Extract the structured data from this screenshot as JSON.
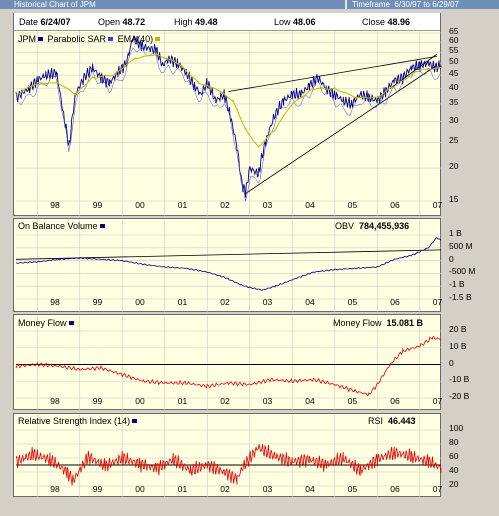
{
  "window": {
    "title": "Historical Chart of JPM",
    "timeframe_label": "Timeframe",
    "timeframe_value": "6/30/97 to 6/29/07"
  },
  "info": {
    "date_label": "Date",
    "date": "6/24/07",
    "open_label": "Open",
    "open": "48.72",
    "high_label": "High",
    "high": "49.48",
    "low_label": "Low",
    "low": "48.06",
    "close_label": "Close",
    "close": "48.96"
  },
  "colors": {
    "panel_bg": "#ffffe1",
    "price": "#00008b",
    "sar": "#3344dd",
    "ema": "#c8b400",
    "obv": "#00007a",
    "money_flow": "#e00000",
    "rsi": "#e00000",
    "grid": "#c8c8c8"
  },
  "chart_data": [
    {
      "type": "line",
      "legend": [
        "JPM",
        "Parabolic SAR",
        "EMA(40)"
      ],
      "legend_placement": "top-left",
      "y_scale": "log",
      "ylim": [
        15,
        65
      ],
      "y_ticks": [
        "65",
        "60",
        "55",
        "50",
        "45",
        "40",
        "35",
        "30",
        "25",
        "20",
        "15"
      ],
      "x_ticks": [
        "98",
        "99",
        "00",
        "01",
        "02",
        "03",
        "04",
        "05",
        "06",
        "07"
      ],
      "grid": true,
      "series": [
        {
          "name": "JPM",
          "x": [
            1997.5,
            1997.8,
            1998.0,
            1998.2,
            1998.45,
            1998.6,
            1998.75,
            1998.9,
            1999.1,
            1999.3,
            1999.5,
            1999.7,
            1999.9,
            2000.1,
            2000.25,
            2000.45,
            2000.6,
            2000.8,
            2000.95,
            2001.1,
            2001.3,
            2001.5,
            2001.7,
            2001.85,
            2002.0,
            2002.2,
            2002.4,
            2002.55,
            2002.7,
            2002.8,
            2002.9,
            2003.0,
            2003.2,
            2003.4,
            2003.6,
            2003.8,
            2004.0,
            2004.2,
            2004.4,
            2004.6,
            2004.8,
            2005.0,
            2005.2,
            2005.4,
            2005.6,
            2005.8,
            2006.0,
            2006.2,
            2006.4,
            2006.6,
            2006.8,
            2007.0,
            2007.2,
            2007.35,
            2007.5
          ],
          "values": [
            37,
            40,
            43,
            45,
            46,
            33,
            24,
            38,
            44,
            48,
            44,
            42,
            46,
            50,
            62,
            58,
            57,
            56,
            49,
            52,
            50,
            46,
            41,
            38,
            42,
            36,
            38,
            31,
            24,
            18,
            16,
            20,
            19,
            26,
            32,
            36,
            38,
            38,
            41,
            44,
            40,
            38,
            36,
            35,
            38,
            37,
            36,
            39,
            43,
            44,
            48,
            49,
            50,
            48,
            49
          ]
        },
        {
          "name": "EMA(40)",
          "x": [
            1997.5,
            1998.0,
            1998.5,
            1998.9,
            1999.3,
            1999.8,
            2000.3,
            2000.8,
            2001.3,
            2001.8,
            2002.2,
            2002.6,
            2002.9,
            2003.2,
            2003.6,
            2004.0,
            2004.5,
            2005.0,
            2005.5,
            2006.0,
            2006.5,
            2007.0,
            2007.5
          ],
          "values": [
            38,
            42,
            42,
            38,
            44,
            45,
            52,
            54,
            50,
            42,
            40,
            36,
            28,
            24,
            28,
            35,
            40,
            40,
            37,
            37,
            42,
            47,
            48
          ]
        }
      ],
      "trendlines": [
        {
          "from": [
            2002.5,
            39
          ],
          "to": [
            2007.4,
            53
          ]
        },
        {
          "from": [
            2002.9,
            16
          ],
          "to": [
            2007.4,
            49
          ]
        },
        {
          "from": [
            2006.3,
            40
          ],
          "to": [
            2007.4,
            54
          ]
        }
      ]
    },
    {
      "type": "line",
      "title": "On Balance Volume",
      "readout_label": "OBV",
      "readout_value": "784,455,936",
      "legend_placement": "top-left",
      "ylim": [
        -1500,
        1000
      ],
      "y_ticks": [
        "1 B",
        "500 M",
        "0",
        "-500 M",
        "-1 B",
        "-1.5 B"
      ],
      "x_ticks": [
        "98",
        "99",
        "00",
        "01",
        "02",
        "03",
        "04",
        "05",
        "06",
        "07"
      ],
      "grid": true,
      "series": [
        {
          "name": "OBV",
          "x": [
            1997.5,
            1998.0,
            1998.5,
            1999.0,
            1999.5,
            2000.0,
            2000.5,
            2001.0,
            2001.5,
            2002.0,
            2002.4,
            2002.8,
            2003.0,
            2003.3,
            2003.6,
            2004.0,
            2004.5,
            2005.0,
            2005.5,
            2006.0,
            2006.4,
            2006.8,
            2007.0,
            2007.2,
            2007.4,
            2007.5
          ],
          "values": [
            -100,
            -50,
            50,
            100,
            50,
            0,
            -150,
            -250,
            -300,
            -450,
            -650,
            -950,
            -1050,
            -1150,
            -1000,
            -750,
            -450,
            -350,
            -300,
            -250,
            50,
            200,
            350,
            500,
            900,
            784
          ]
        }
      ],
      "trendlines": [
        {
          "from": [
            1997.5,
            50
          ],
          "to": [
            2007.5,
            420
          ]
        }
      ]
    },
    {
      "type": "line",
      "title": "Money Flow",
      "readout_label": "Money Flow",
      "readout_value": "15.081 B",
      "legend_placement": "top-left",
      "ylim": [
        -20,
        20
      ],
      "y_ticks": [
        "20 B",
        "10 B",
        "0",
        "-10 B",
        "-20 B"
      ],
      "x_ticks": [
        "98",
        "99",
        "00",
        "01",
        "02",
        "03",
        "04",
        "05",
        "06",
        "07"
      ],
      "grid": true,
      "series": [
        {
          "name": "Money Flow",
          "x": [
            1997.5,
            1998.0,
            1998.5,
            1999.0,
            1999.5,
            2000.0,
            2000.5,
            2001.0,
            2001.5,
            2002.0,
            2002.5,
            2003.0,
            2003.5,
            2004.0,
            2004.5,
            2005.0,
            2005.5,
            2005.8,
            2006.0,
            2006.3,
            2006.6,
            2007.0,
            2007.3,
            2007.5
          ],
          "values": [
            -1,
            0,
            -1,
            -3,
            -2,
            -6,
            -10,
            -11,
            -11,
            -13,
            -11,
            -12,
            -9,
            -10,
            -9,
            -12,
            -16,
            -18,
            -12,
            0,
            8,
            11,
            16,
            15
          ]
        }
      ],
      "reference_line": 0
    },
    {
      "type": "line",
      "title": "Relative Strength Index (14)",
      "readout_label": "RSI",
      "readout_value": "46.443",
      "legend_placement": "top-left",
      "ylim": [
        20,
        100
      ],
      "y_ticks": [
        "100",
        "80",
        "60",
        "40",
        "20"
      ],
      "x_ticks": [
        "98",
        "99",
        "00",
        "01",
        "02",
        "03",
        "04",
        "05",
        "06",
        "07"
      ],
      "grid": true,
      "series": [
        {
          "name": "RSI",
          "x": [
            1997.5,
            1997.9,
            1998.3,
            1998.7,
            1998.85,
            1999.2,
            1999.6,
            2000.0,
            2000.4,
            2000.8,
            2001.2,
            2001.6,
            2002.0,
            2002.4,
            2002.7,
            2002.85,
            2003.2,
            2003.6,
            2004.0,
            2004.4,
            2004.8,
            2005.2,
            2005.6,
            2006.0,
            2006.4,
            2006.8,
            2007.2,
            2007.5
          ],
          "values": [
            55,
            65,
            58,
            40,
            28,
            62,
            48,
            60,
            52,
            45,
            58,
            42,
            50,
            40,
            30,
            48,
            75,
            62,
            55,
            58,
            50,
            60,
            42,
            58,
            68,
            62,
            55,
            46
          ]
        }
      ],
      "reference_line": 50
    }
  ]
}
